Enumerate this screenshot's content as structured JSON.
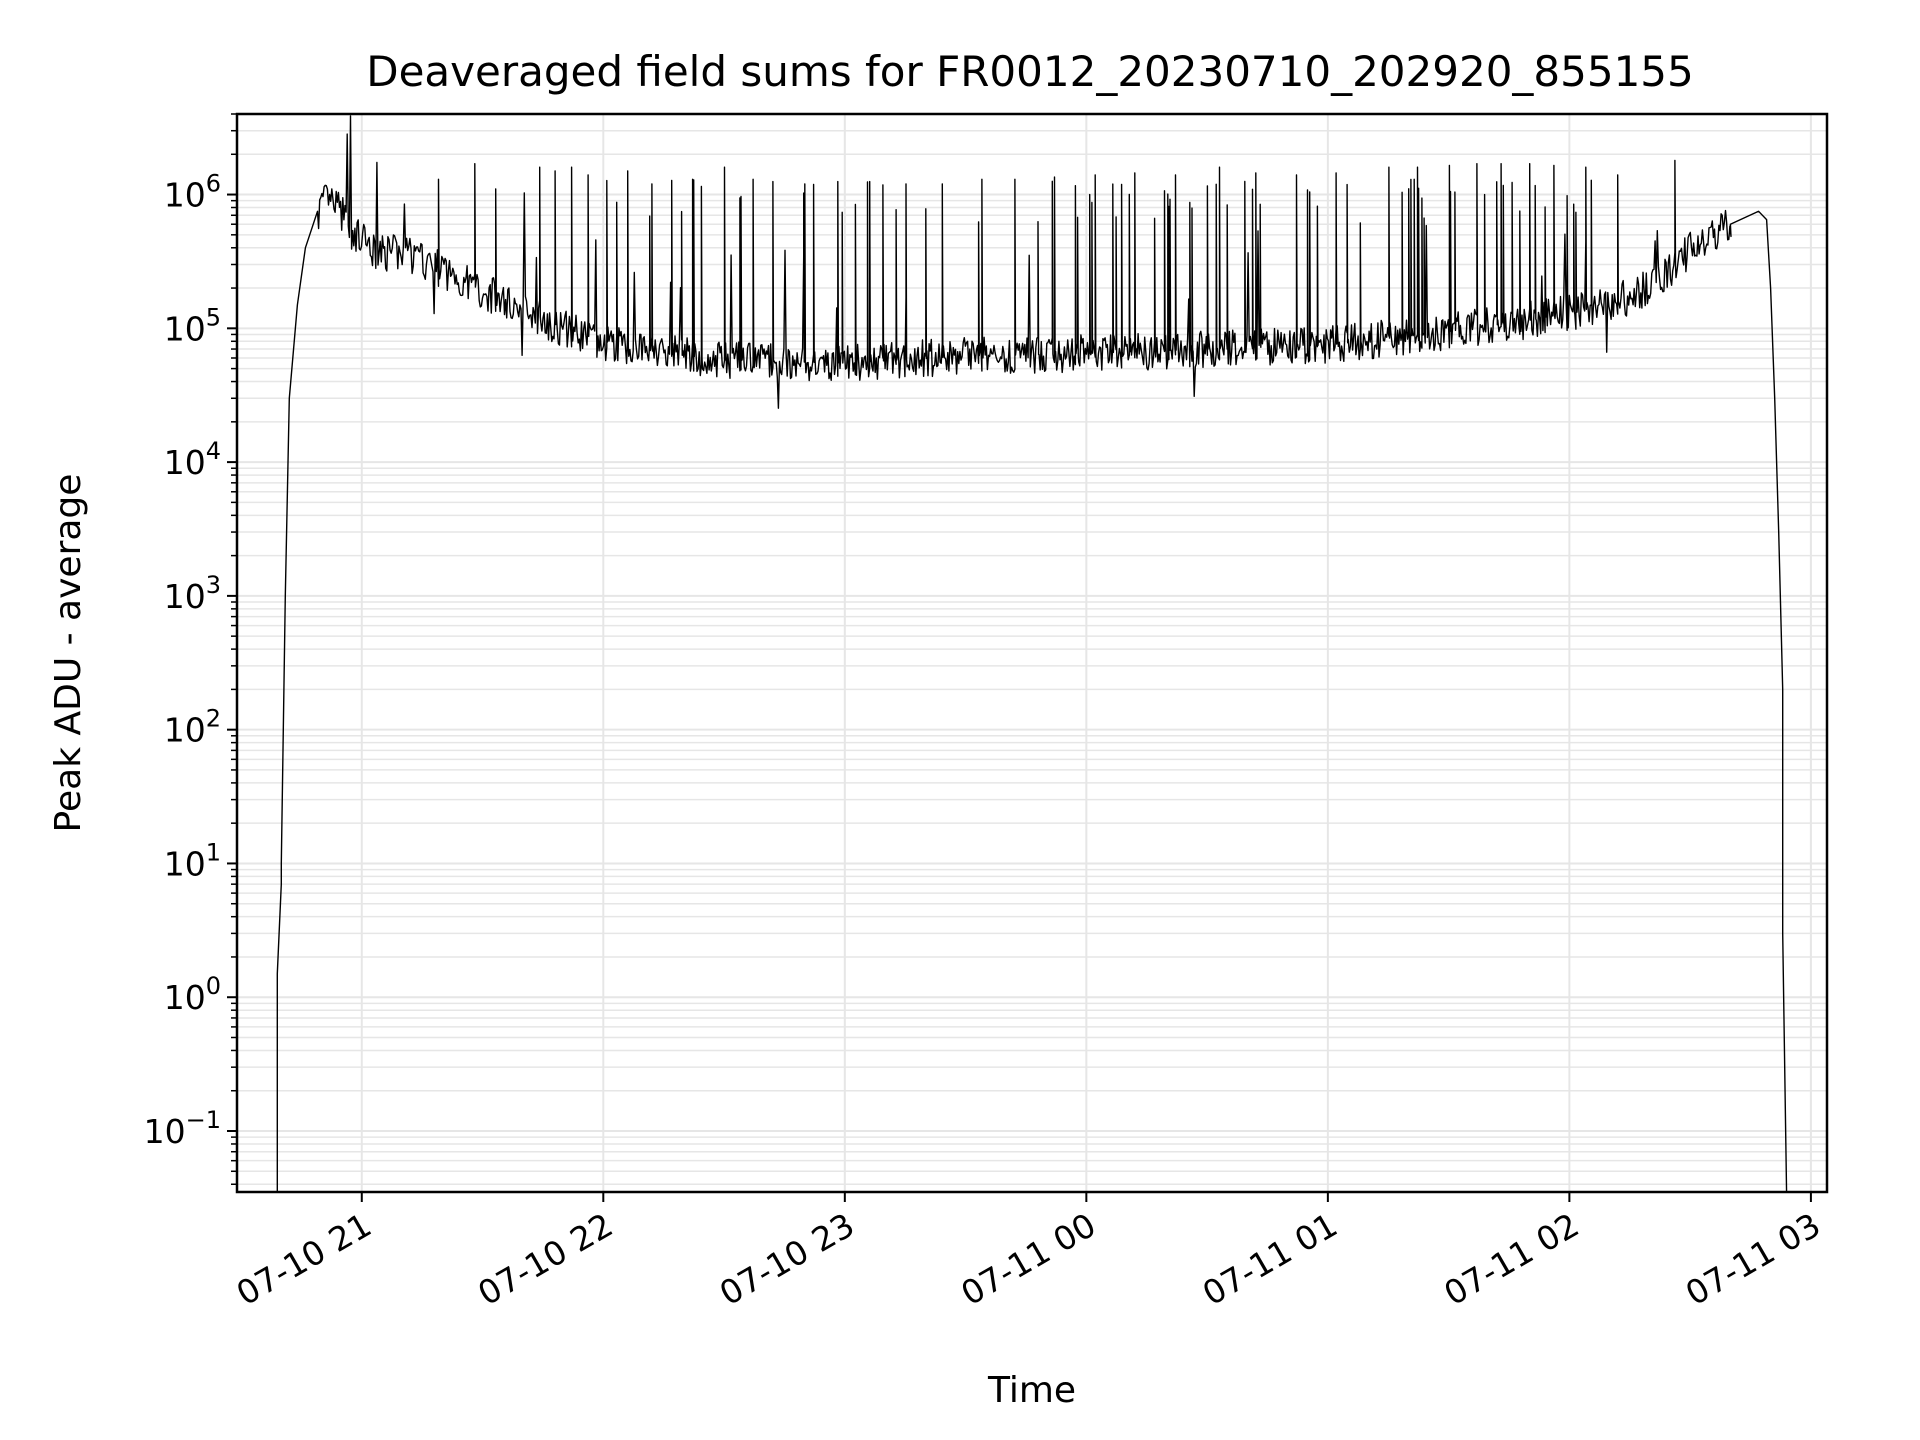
{
  "chart_data": {
    "type": "line",
    "title": "Deaveraged field sums for FR0012_20230710_202920_855155",
    "xlabel": "Time",
    "ylabel": "Peak ADU - average",
    "yscale": "log",
    "ylim": [
      0.035,
      4000000
    ],
    "xlim": [
      "2023-07-10 20:29",
      "2023-07-11 03:04"
    ],
    "grid": true,
    "line_color": "#000000",
    "grid_color": "#e6e6e6",
    "x_ticks": [
      {
        "value": "2023-07-10 21:00",
        "label": "07-10 21"
      },
      {
        "value": "2023-07-10 22:00",
        "label": "07-10 22"
      },
      {
        "value": "2023-07-10 23:00",
        "label": "07-10 23"
      },
      {
        "value": "2023-07-11 00:00",
        "label": "07-11 00"
      },
      {
        "value": "2023-07-11 01:00",
        "label": "07-11 01"
      },
      {
        "value": "2023-07-11 02:00",
        "label": "07-11 02"
      },
      {
        "value": "2023-07-11 03:00",
        "label": "07-11 03"
      }
    ],
    "y_ticks": [
      {
        "value": 0.1,
        "base": "10",
        "exp": "−1"
      },
      {
        "value": 1,
        "base": "10",
        "exp": "0"
      },
      {
        "value": 10,
        "base": "10",
        "exp": "1"
      },
      {
        "value": 100,
        "base": "10",
        "exp": "2"
      },
      {
        "value": 1000,
        "base": "10",
        "exp": "3"
      },
      {
        "value": 10000,
        "base": "10",
        "exp": "4"
      },
      {
        "value": 100000,
        "base": "10",
        "exp": "5"
      },
      {
        "value": 1000000,
        "base": "10",
        "exp": "6"
      }
    ],
    "series": [
      {
        "baseline": [
          [
            "2023-07-10 20:39",
            0.03
          ],
          [
            "2023-07-10 20:39",
            1.5
          ],
          [
            "2023-07-10 20:40",
            7
          ],
          [
            "2023-07-10 20:40",
            10
          ],
          [
            "2023-07-10 20:41",
            1000
          ],
          [
            "2023-07-10 20:42",
            30000
          ],
          [
            "2023-07-10 20:44",
            150000
          ],
          [
            "2023-07-10 20:46",
            400000
          ],
          [
            "2023-07-10 20:49",
            750000
          ],
          [
            "2023-07-10 20:51",
            900000
          ],
          [
            "2023-07-10 20:54",
            800000
          ],
          [
            "2023-07-10 20:58",
            500000
          ],
          [
            "2023-07-10 21:03",
            380000
          ],
          [
            "2023-07-10 21:12",
            350000
          ],
          [
            "2023-07-10 21:20",
            270000
          ],
          [
            "2023-07-10 21:30",
            190000
          ],
          [
            "2023-07-10 21:40",
            140000
          ],
          [
            "2023-07-10 21:50",
            100000
          ],
          [
            "2023-07-10 22:00",
            80000
          ],
          [
            "2023-07-10 22:15",
            65000
          ],
          [
            "2023-07-10 22:30",
            58000
          ],
          [
            "2023-07-10 23:00",
            55000
          ],
          [
            "2023-07-10 23:30",
            62000
          ],
          [
            "2023-07-11 00:00",
            65000
          ],
          [
            "2023-07-11 00:30",
            70000
          ],
          [
            "2023-07-11 01:00",
            75000
          ],
          [
            "2023-07-11 01:30",
            95000
          ],
          [
            "2023-07-11 01:50",
            115000
          ],
          [
            "2023-07-11 02:10",
            150000
          ],
          [
            "2023-07-11 02:20",
            200000
          ],
          [
            "2023-07-11 02:30",
            380000
          ],
          [
            "2023-07-11 02:40",
            600000
          ],
          [
            "2023-07-11 02:47",
            750000
          ],
          [
            "2023-07-11 02:49",
            650000
          ],
          [
            "2023-07-11 02:50",
            200000
          ],
          [
            "2023-07-11 02:51",
            30000
          ],
          [
            "2023-07-11 02:52",
            3000
          ],
          [
            "2023-07-11 02:53",
            200
          ],
          [
            "2023-07-11 02:53",
            8
          ],
          [
            "2023-07-11 02:53",
            3
          ],
          [
            "2023-07-11 02:54",
            0.03
          ]
        ],
        "spikes": [
          [
            "2023-07-10 21:19",
            1300000
          ],
          [
            "2023-07-10 21:28",
            1700000
          ],
          [
            "2023-07-10 21:33",
            1100000
          ],
          [
            "2023-07-10 21:44",
            1600000
          ],
          [
            "2023-07-10 21:48",
            1500000
          ],
          [
            "2023-07-10 21:52",
            1600000
          ],
          [
            "2023-07-10 21:56",
            1400000
          ],
          [
            "2023-07-10 22:06",
            1500000
          ],
          [
            "2023-07-10 22:12",
            1200000
          ],
          [
            "2023-07-10 22:22",
            1300000
          ],
          [
            "2023-07-10 22:30",
            1600000
          ],
          [
            "2023-07-10 22:37",
            1300000
          ],
          [
            "2023-07-10 22:42",
            1250000
          ],
          [
            "2023-07-10 22:50",
            1200000
          ],
          [
            "2023-07-10 22:58",
            1250000
          ],
          [
            "2023-07-10 23:06",
            1250000
          ],
          [
            "2023-07-10 23:15",
            1200000
          ],
          [
            "2023-07-10 23:24",
            1200000
          ],
          [
            "2023-07-10 23:34",
            1300000
          ],
          [
            "2023-07-10 23:42",
            1300000
          ],
          [
            "2023-07-10 23:52",
            1350000
          ],
          [
            "2023-07-11 00:02",
            1400000
          ],
          [
            "2023-07-11 00:12",
            1450000
          ],
          [
            "2023-07-11 00:22",
            1400000
          ],
          [
            "2023-07-11 00:33",
            1600000
          ],
          [
            "2023-07-11 00:42",
            1450000
          ],
          [
            "2023-07-11 00:52",
            1400000
          ],
          [
            "2023-07-11 01:02",
            1450000
          ],
          [
            "2023-07-11 01:15",
            1600000
          ],
          [
            "2023-07-11 01:22",
            1600000
          ],
          [
            "2023-07-11 01:30",
            1650000
          ],
          [
            "2023-07-11 01:37",
            1700000
          ],
          [
            "2023-07-11 01:43",
            1700000
          ],
          [
            "2023-07-11 01:50",
            1700000
          ],
          [
            "2023-07-11 01:56",
            1650000
          ],
          [
            "2023-07-11 02:04",
            1600000
          ],
          [
            "2023-07-11 02:12",
            1400000
          ],
          [
            "2023-07-11 02:26",
            1800000
          ]
        ]
      }
    ]
  }
}
